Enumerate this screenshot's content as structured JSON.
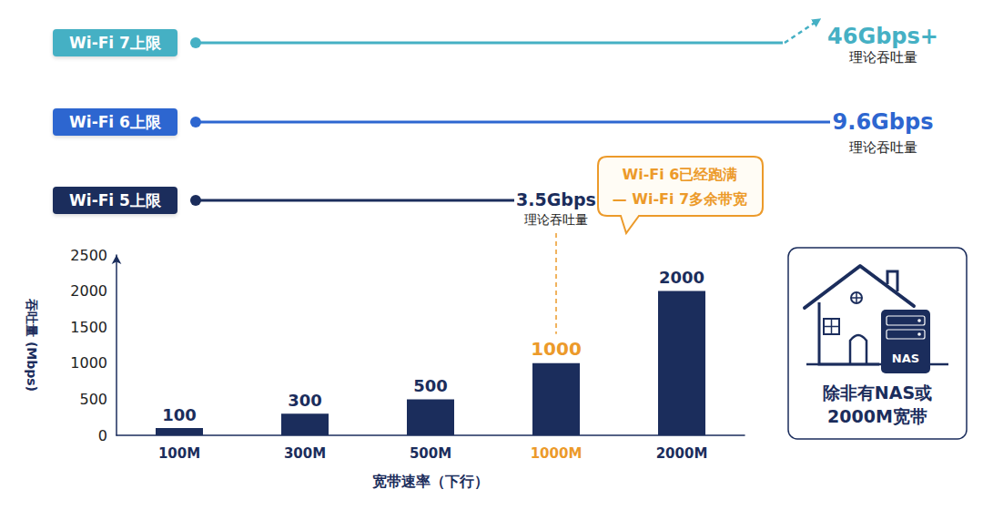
{
  "chart_data": {
    "type": "bar",
    "categories": [
      "100M",
      "300M",
      "500M",
      "1000M",
      "2000M"
    ],
    "values": [
      100,
      300,
      500,
      1000,
      2000
    ],
    "color": "#1b2d5c",
    "xlabel": "宽带速率（下行）",
    "ylabel": "吞吐量 (Mbps)",
    "ylim": [
      0,
      2500
    ],
    "yticks": [
      0,
      500,
      1000,
      1500,
      2000,
      2500
    ],
    "grid": false,
    "data_labels": true,
    "annotations": [
      {
        "text": [
          "Wi-Fi 6已经跑满",
          "— Wi-Fi 7多余带宽"
        ],
        "category": "1000M",
        "color": "#ec9a2a"
      }
    ]
  },
  "limits": [
    {
      "label": "Wi-Fi 7上限",
      "value": "46Gbps+",
      "note": "理论吞吐量",
      "color": "#45b0c4"
    },
    {
      "label": "Wi-Fi 6上限",
      "value": "9.6Gbps",
      "note": "理论吞吐量",
      "color": "#2d66d0"
    },
    {
      "label": "Wi-Fi 5上限",
      "value": "3.5Gbps",
      "note": "理论吞吐量",
      "color": "#1b2d5c"
    }
  ],
  "note_box": {
    "icon_label": "NAS",
    "text": [
      "除非有NAS或",
      "2000M宽带"
    ]
  }
}
